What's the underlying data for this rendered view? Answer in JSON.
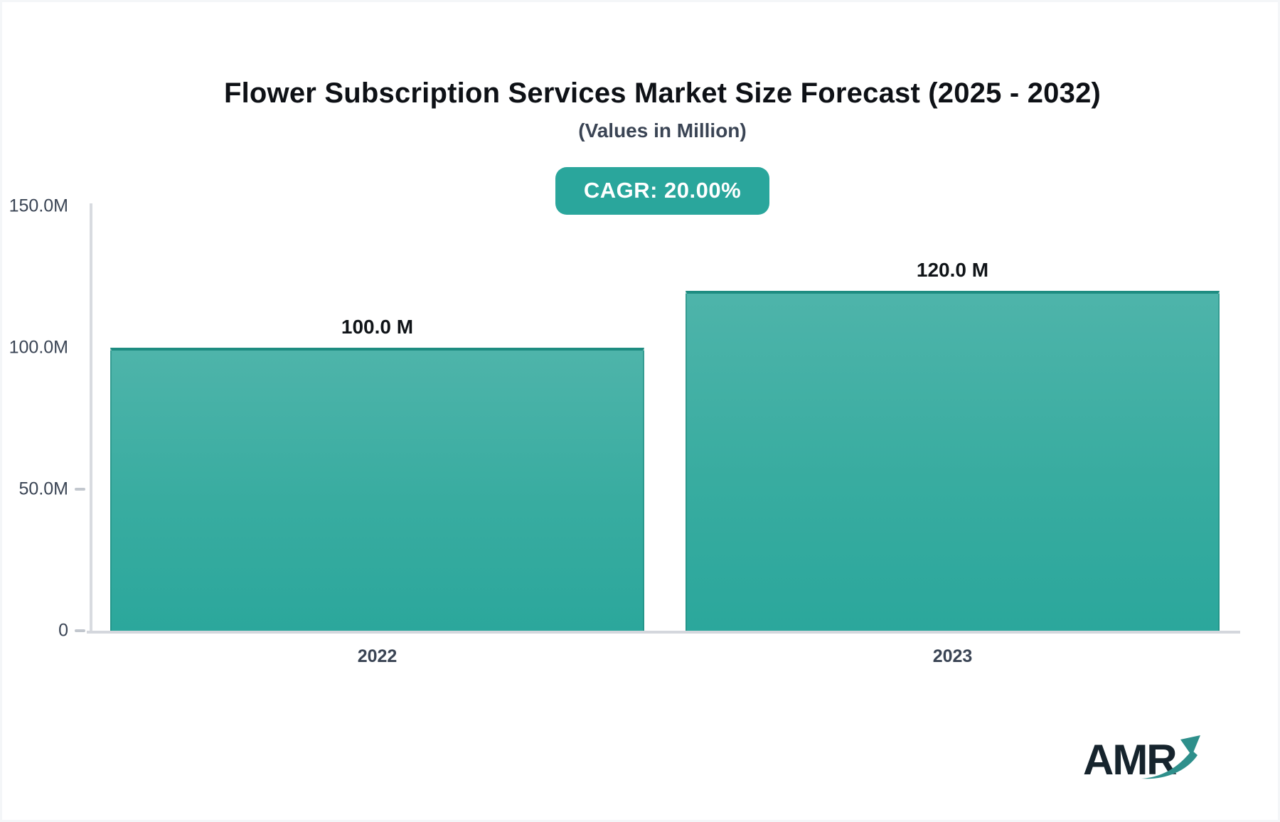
{
  "header": {
    "title": "Flower Subscription Services Market Size Forecast (2025 - 2032)",
    "subtitle": "(Values in Million)",
    "cagr_badge": "CAGR: 20.00%"
  },
  "chart_data": {
    "type": "bar",
    "title": "Flower Subscription Services Market Size Forecast (2025 - 2032)",
    "subtitle": "(Values in Million)",
    "unit": "Million",
    "cagr": "20.00%",
    "categories": [
      "2022",
      "2023"
    ],
    "values": [
      100.0,
      120.0
    ],
    "value_labels": [
      "100.0 M",
      "120.0 M"
    ],
    "xlabel": "",
    "ylabel": "",
    "ylim": [
      0,
      150
    ],
    "y_ticks": [
      {
        "label": "150.0M",
        "value": 150,
        "tick_mark": false
      },
      {
        "label": "100.0M",
        "value": 100,
        "tick_mark": false
      },
      {
        "label": "50.0M",
        "value": 50,
        "tick_mark": true
      },
      {
        "label": "0",
        "value": 0,
        "tick_mark": true
      }
    ],
    "grid": false,
    "legend": false
  },
  "colors": {
    "accent_teal": "#2aa69c",
    "bar_gradient_top": "#4eb4aa",
    "bar_gradient_bottom": "#2ba79c",
    "bar_top_border": "#1e8c81",
    "axis_line": "#d8dbe0",
    "tick_dash": "#c2c7ce",
    "label_text": "#3a4454",
    "title_text": "#0e1116",
    "badge_text": "#ffffff",
    "logo_text": "#16242d",
    "logo_arrow": "#2e8f8b"
  },
  "logo": {
    "text": "AMR"
  }
}
